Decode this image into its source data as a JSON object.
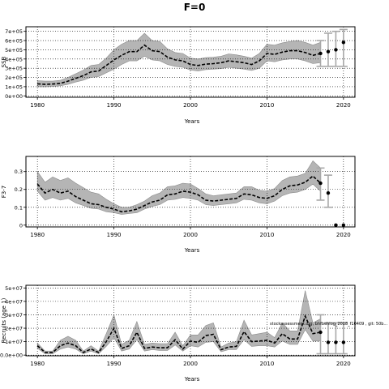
{
  "figure": {
    "title": "F=0",
    "annotation": "stockassessment.org, bhfbehlog_2018_f10409 , git: 50b..."
  },
  "chart_data": [
    {
      "type": "line",
      "xlabel": "Years",
      "ylabel": "SSB",
      "xlim": [
        1978.5,
        2021.5
      ],
      "ylim": [
        -15000,
        750000
      ],
      "grid": true,
      "x_ticks": [
        1980,
        1990,
        2000,
        2010,
        2020
      ],
      "y_ticks": [
        0,
        100000,
        200000,
        300000,
        400000,
        500000,
        600000,
        700000
      ],
      "y_tick_labels": [
        "0e+00",
        "1e+05",
        "2e+05",
        "3e+05",
        "4e+05",
        "5e+05",
        "6e+05",
        "7e+05"
      ],
      "series": [
        {
          "x": [
            1980,
            1981,
            1982,
            1983,
            1984,
            1985,
            1986,
            1987,
            1988,
            1989,
            1990,
            1991,
            1992,
            1993,
            1994,
            1995,
            1996,
            1997,
            1998,
            1999,
            2000,
            2001,
            2002,
            2003,
            2004,
            2005,
            2006,
            2007,
            2008,
            2009,
            2010,
            2011,
            2012,
            2013,
            2014,
            2015,
            2016,
            2017
          ],
          "values": [
            130000,
            125000,
            128000,
            135000,
            160000,
            190000,
            220000,
            260000,
            270000,
            330000,
            390000,
            440000,
            480000,
            480000,
            550000,
            490000,
            480000,
            420000,
            390000,
            380000,
            340000,
            330000,
            345000,
            350000,
            360000,
            380000,
            370000,
            360000,
            340000,
            380000,
            460000,
            450000,
            475000,
            490000,
            490000,
            470000,
            440000,
            460000
          ],
          "lower": [
            100000,
            98000,
            102000,
            110000,
            125000,
            150000,
            170000,
            200000,
            210000,
            250000,
            290000,
            340000,
            380000,
            380000,
            430000,
            390000,
            380000,
            340000,
            320000,
            310000,
            280000,
            270000,
            285000,
            290000,
            295000,
            310000,
            300000,
            290000,
            275000,
            300000,
            380000,
            370000,
            390000,
            400000,
            400000,
            380000,
            350000,
            360000
          ],
          "upper": [
            165000,
            160000,
            160000,
            170000,
            200000,
            240000,
            280000,
            330000,
            340000,
            410000,
            500000,
            560000,
            600000,
            600000,
            680000,
            600000,
            590000,
            510000,
            470000,
            460000,
            410000,
            400000,
            415000,
            420000,
            430000,
            455000,
            445000,
            430000,
            410000,
            460000,
            560000,
            550000,
            575000,
            590000,
            600000,
            580000,
            550000,
            580000
          ]
        }
      ],
      "forecast": {
        "x": [
          2017,
          2018,
          2019,
          2020
        ],
        "values": [
          460000,
          480000,
          500000,
          580000
        ],
        "lower": [
          320000,
          320000,
          320000,
          320000
        ],
        "upper": [
          600000,
          680000,
          700000,
          720000
        ],
        "interval_years": [
          2017,
          2018,
          2019,
          2020
        ]
      }
    },
    {
      "type": "line",
      "xlabel": "Years",
      "ylabel": "F3-7",
      "xlim": [
        1978.5,
        2021.5
      ],
      "ylim": [
        -0.01,
        0.385
      ],
      "grid": true,
      "x_ticks": [
        1980,
        1990,
        2000,
        2010,
        2020
      ],
      "y_ticks": [
        0,
        0.1,
        0.2,
        0.3
      ],
      "y_tick_labels": [
        "0",
        "0.1",
        "0.2",
        "0.3"
      ],
      "series": [
        {
          "x": [
            1980,
            1981,
            1982,
            1983,
            1984,
            1985,
            1986,
            1987,
            1988,
            1989,
            1990,
            1991,
            1992,
            1993,
            1994,
            1995,
            1996,
            1997,
            1998,
            1999,
            2000,
            2001,
            2002,
            2003,
            2004,
            2005,
            2006,
            2007,
            2008,
            2009,
            2010,
            2011,
            2012,
            2013,
            2014,
            2015,
            2016,
            2017
          ],
          "values": [
            0.23,
            0.18,
            0.2,
            0.18,
            0.19,
            0.16,
            0.14,
            0.12,
            0.115,
            0.1,
            0.09,
            0.075,
            0.08,
            0.09,
            0.11,
            0.13,
            0.14,
            0.17,
            0.175,
            0.19,
            0.185,
            0.17,
            0.14,
            0.135,
            0.14,
            0.145,
            0.15,
            0.175,
            0.17,
            0.155,
            0.15,
            0.165,
            0.2,
            0.22,
            0.225,
            0.24,
            0.275,
            0.235
          ],
          "lower": [
            0.19,
            0.14,
            0.155,
            0.14,
            0.15,
            0.125,
            0.11,
            0.095,
            0.09,
            0.075,
            0.07,
            0.06,
            0.065,
            0.07,
            0.09,
            0.105,
            0.115,
            0.14,
            0.145,
            0.155,
            0.15,
            0.14,
            0.115,
            0.11,
            0.115,
            0.12,
            0.125,
            0.145,
            0.14,
            0.125,
            0.12,
            0.135,
            0.165,
            0.18,
            0.185,
            0.2,
            0.23,
            0.19
          ],
          "upper": [
            0.3,
            0.24,
            0.27,
            0.25,
            0.265,
            0.235,
            0.21,
            0.185,
            0.175,
            0.145,
            0.12,
            0.1,
            0.1,
            0.115,
            0.135,
            0.165,
            0.18,
            0.215,
            0.22,
            0.235,
            0.23,
            0.205,
            0.175,
            0.165,
            0.17,
            0.175,
            0.18,
            0.215,
            0.215,
            0.195,
            0.19,
            0.205,
            0.25,
            0.27,
            0.275,
            0.29,
            0.36,
            0.32
          ]
        }
      ],
      "forecast": {
        "x": [
          2017,
          2018,
          2019,
          2020
        ],
        "values": [
          0.235,
          0.18,
          0,
          0
        ],
        "lower": [
          0.14,
          0.1,
          0,
          0
        ],
        "upper": [
          0.32,
          0.28,
          0,
          0
        ],
        "interval_years": [
          2017,
          2018
        ]
      }
    },
    {
      "type": "line",
      "xlabel": "Years",
      "ylabel": "Recruits (age 1)",
      "xlim": [
        1978.5,
        2021.5
      ],
      "ylim": [
        -500000,
        52000000
      ],
      "grid": true,
      "x_ticks": [
        1980,
        1990,
        2000,
        2010,
        2020
      ],
      "y_ticks": [
        0,
        10000000,
        20000000,
        30000000,
        40000000,
        50000000
      ],
      "y_tick_labels": [
        "0.0e+00",
        "1e+07",
        "2e+07",
        "3e+07",
        "4e+07",
        "5e+07"
      ],
      "series": [
        {
          "x": [
            1980,
            1981,
            1982,
            1983,
            1984,
            1985,
            1986,
            1987,
            1988,
            1989,
            1990,
            1991,
            1992,
            1993,
            1994,
            1995,
            1996,
            1997,
            1998,
            1999,
            2000,
            2001,
            2002,
            2003,
            2004,
            2005,
            2006,
            2007,
            2008,
            2009,
            2010,
            2011,
            2012,
            2013,
            2014,
            2015,
            2016,
            2017
          ],
          "values": [
            7000000,
            2000000,
            2000000,
            7000000,
            9000000,
            7000000,
            2000000,
            4500000,
            2000000,
            10000000,
            20000000,
            5000000,
            7000000,
            17000000,
            5000000,
            6000000,
            5500000,
            5500000,
            11500000,
            4500000,
            10500000,
            9500000,
            14500000,
            15500000,
            4000000,
            6000000,
            6500000,
            17500000,
            10000000,
            10500000,
            11000000,
            9000000,
            16000000,
            12000000,
            12000000,
            29000000,
            16000000,
            17000000
          ],
          "lower": [
            5000000,
            1000000,
            1000000,
            4500000,
            6000000,
            4500000,
            1000000,
            3000000,
            1000000,
            6500000,
            13000000,
            3000000,
            4500000,
            11500000,
            3000000,
            4000000,
            3500000,
            3500000,
            7500000,
            3000000,
            7000000,
            6000000,
            9500000,
            10000000,
            2500000,
            4000000,
            4000000,
            11500000,
            6500000,
            7000000,
            7000000,
            6000000,
            10500000,
            8000000,
            8000000,
            19000000,
            10500000,
            10500000
          ],
          "upper": [
            9000000,
            3000000,
            3000000,
            11000000,
            14000000,
            11000000,
            3000000,
            7000000,
            3000000,
            16000000,
            30000000,
            8000000,
            11000000,
            25000000,
            8000000,
            9000000,
            8500000,
            8500000,
            17000000,
            7000000,
            15000000,
            15000000,
            22000000,
            24000000,
            6000000,
            9000000,
            10000000,
            26000000,
            15000000,
            16000000,
            17000000,
            13000000,
            24000000,
            18000000,
            18000000,
            48000000,
            24000000,
            27000000
          ]
        }
      ],
      "forecast": {
        "x": [
          2017,
          2018,
          2019,
          2020
        ],
        "values": [
          17000000,
          9500000,
          9500000,
          9500000
        ],
        "lower": [
          1000000,
          1000000,
          1000000,
          1000000
        ],
        "upper": [
          30000000,
          24000000,
          24000000,
          24000000
        ],
        "interval_years": [
          2017,
          2018,
          2019,
          2020
        ]
      }
    }
  ]
}
